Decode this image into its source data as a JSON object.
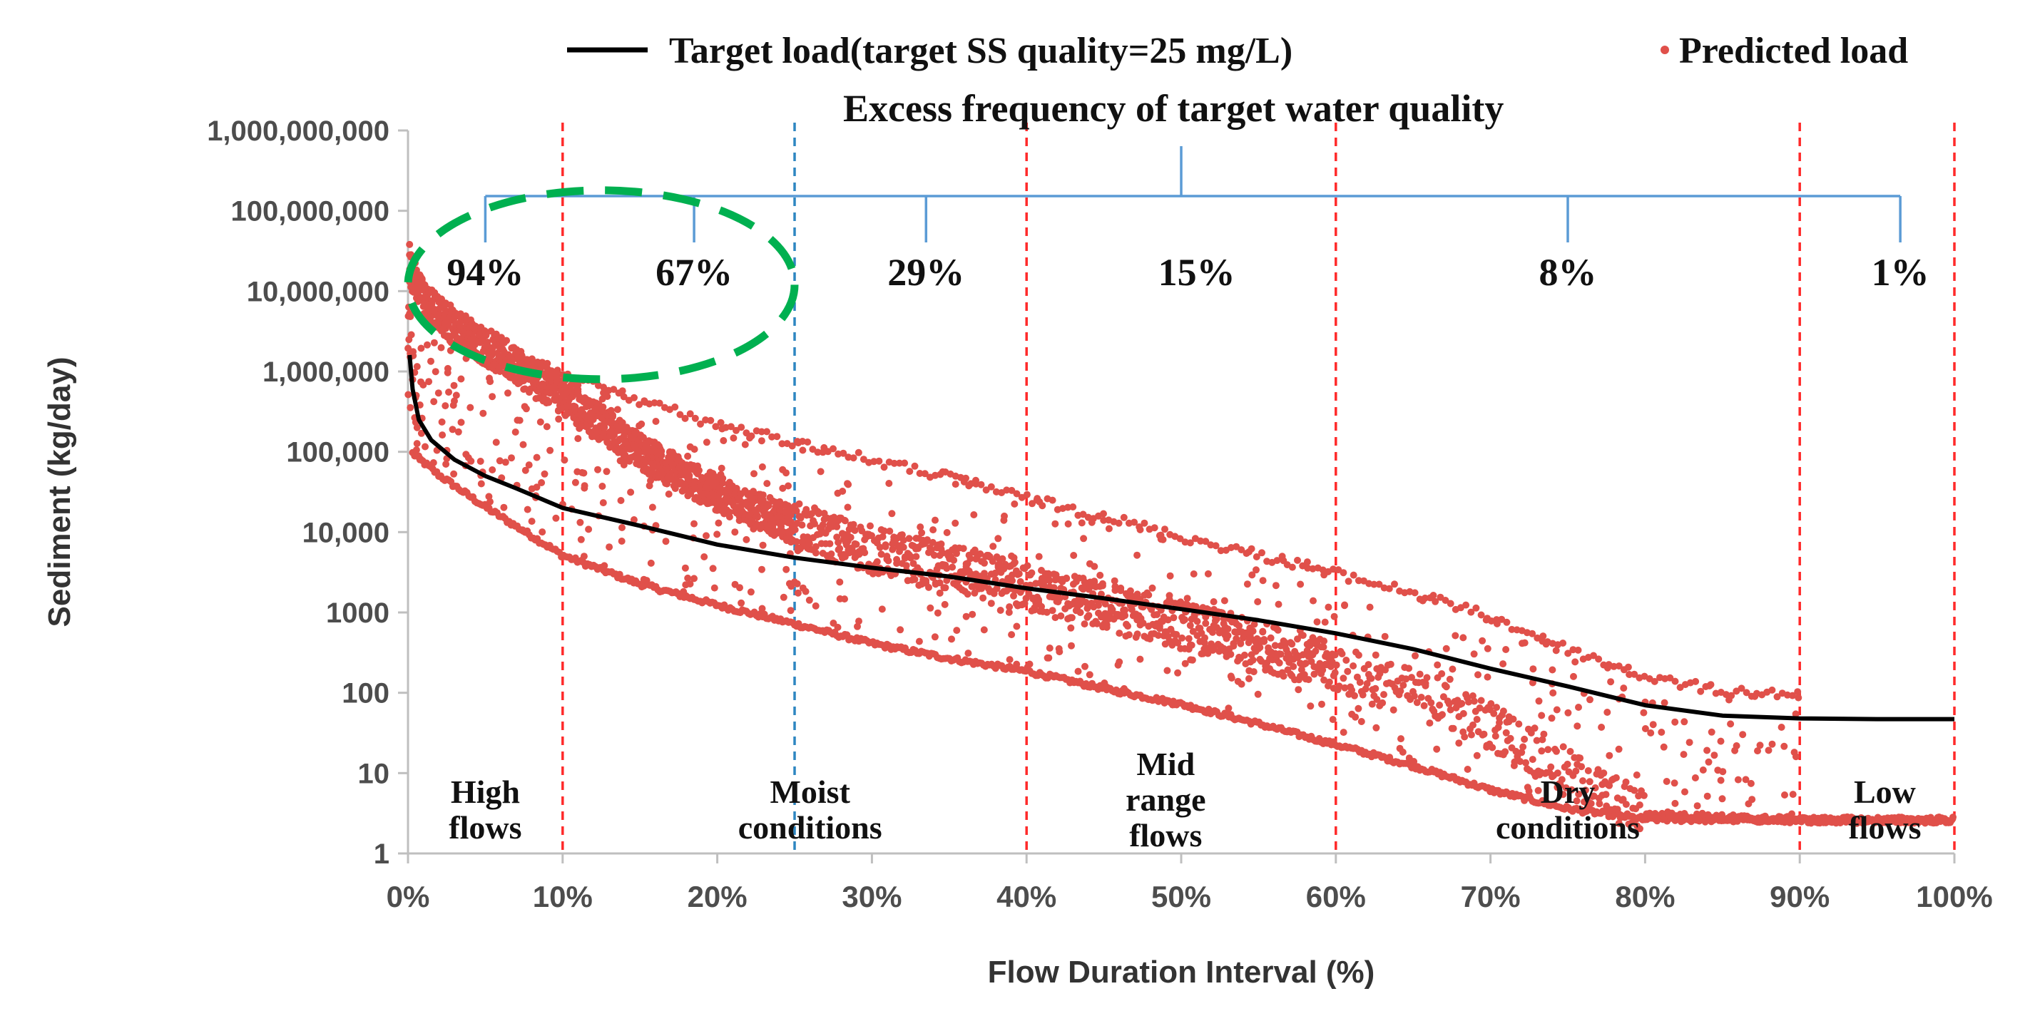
{
  "chart_data": {
    "type": "scatter",
    "title": "",
    "xlabel": "Flow Duration Interval (%)",
    "ylabel": "Sediment (kg/day)",
    "xlim": [
      0,
      100
    ],
    "ylim_log10": [
      0,
      9
    ],
    "y_ticks": [
      {
        "value": 1,
        "label": "1"
      },
      {
        "value": 10,
        "label": "10"
      },
      {
        "value": 100,
        "label": "100"
      },
      {
        "value": 1000,
        "label": "1000"
      },
      {
        "value": 10000,
        "label": "10,000"
      },
      {
        "value": 100000,
        "label": "100,000"
      },
      {
        "value": 1000000,
        "label": "1,000,000"
      },
      {
        "value": 10000000,
        "label": "10,000,000"
      },
      {
        "value": 100000000,
        "label": "100,000,000"
      },
      {
        "value": 1000000000,
        "label": "1,000,000,000"
      }
    ],
    "x_ticks": [
      {
        "value": 0,
        "label": "0%"
      },
      {
        "value": 10,
        "label": "10%"
      },
      {
        "value": 20,
        "label": "20%"
      },
      {
        "value": 30,
        "label": "30%"
      },
      {
        "value": 40,
        "label": "40%"
      },
      {
        "value": 50,
        "label": "50%"
      },
      {
        "value": 60,
        "label": "60%"
      },
      {
        "value": 70,
        "label": "70%"
      },
      {
        "value": 80,
        "label": "80%"
      },
      {
        "value": 90,
        "label": "90%"
      },
      {
        "value": 100,
        "label": "100%"
      }
    ],
    "legend": [
      {
        "name": "Target load(target  SS quality=25  mg/L)",
        "color": "#000000",
        "kind": "line"
      },
      {
        "name": "Predicted  load",
        "color": "#e0504a",
        "kind": "marker"
      }
    ],
    "series": [
      {
        "name": "Target load(target  SS quality=25  mg/L)",
        "type": "line",
        "color": "#000000",
        "points": [
          [
            0.1,
            1600000
          ],
          [
            0.3,
            600000
          ],
          [
            0.7,
            250000
          ],
          [
            1.5,
            140000
          ],
          [
            3,
            80000
          ],
          [
            5,
            50000
          ],
          [
            7,
            35000
          ],
          [
            10,
            20000
          ],
          [
            15,
            12000
          ],
          [
            20,
            7000
          ],
          [
            25,
            4800
          ],
          [
            30,
            3600
          ],
          [
            35,
            2800
          ],
          [
            40,
            2000
          ],
          [
            45,
            1500
          ],
          [
            50,
            1100
          ],
          [
            55,
            800
          ],
          [
            60,
            550
          ],
          [
            65,
            350
          ],
          [
            70,
            200
          ],
          [
            75,
            120
          ],
          [
            80,
            70
          ],
          [
            85,
            52
          ],
          [
            90,
            48
          ],
          [
            95,
            47
          ],
          [
            100,
            47
          ]
        ]
      },
      {
        "name": "Predicted  load",
        "type": "scatter",
        "color": "#e0504a",
        "bands": {
          "upper": [
            [
              0.1,
              40000000
            ],
            [
              1,
              15000000
            ],
            [
              3,
              6000000
            ],
            [
              5,
              3500000
            ],
            [
              10,
              1000000
            ],
            [
              15,
              500000
            ],
            [
              20,
              250000
            ],
            [
              25,
              150000
            ],
            [
              30,
              90000
            ],
            [
              35,
              55000
            ],
            [
              40,
              30000
            ],
            [
              45,
              18000
            ],
            [
              50,
              10000
            ],
            [
              55,
              6000
            ],
            [
              60,
              3500
            ],
            [
              65,
              2000
            ],
            [
              70,
              1000
            ],
            [
              75,
              400
            ],
            [
              80,
              180
            ],
            [
              85,
              120
            ],
            [
              90,
              110
            ]
          ],
          "lower": [
            [
              0.1,
              100000
            ],
            [
              2,
              50000
            ],
            [
              5,
              20000
            ],
            [
              10,
              5000
            ],
            [
              15,
              2200
            ],
            [
              20,
              1200
            ],
            [
              25,
              700
            ],
            [
              30,
              400
            ],
            [
              35,
              260
            ],
            [
              40,
              180
            ],
            [
              45,
              110
            ],
            [
              50,
              70
            ],
            [
              55,
              40
            ],
            [
              60,
              22
            ],
            [
              65,
              12
            ],
            [
              70,
              6
            ],
            [
              75,
              3.5
            ],
            [
              80,
              2.6
            ],
            [
              90,
              2.5
            ],
            [
              100,
              2.5
            ]
          ],
          "main": [
            [
              0.1,
              20000000
            ],
            [
              1,
              8000000
            ],
            [
              3,
              3500000
            ],
            [
              5,
              2000000
            ],
            [
              10,
              500000
            ],
            [
              15,
              100000
            ],
            [
              20,
              30000
            ],
            [
              25,
              12000
            ],
            [
              30,
              6000
            ],
            [
              35,
              3500
            ],
            [
              40,
              2000
            ],
            [
              45,
              1200
            ],
            [
              50,
              700
            ],
            [
              55,
              400
            ],
            [
              60,
              200
            ],
            [
              65,
              100
            ],
            [
              70,
              40
            ],
            [
              75,
              10
            ],
            [
              80,
              3
            ],
            [
              90,
              2.6
            ],
            [
              100,
              2.6
            ]
          ]
        }
      }
    ],
    "vertical_lines": [
      {
        "x": 10,
        "color": "#ff2a2a",
        "style": "dashed"
      },
      {
        "x": 25,
        "color": "#2e86c1",
        "style": "dashed"
      },
      {
        "x": 40,
        "color": "#ff2a2a",
        "style": "dashed"
      },
      {
        "x": 60,
        "color": "#ff2a2a",
        "style": "dashed"
      },
      {
        "x": 90,
        "color": "#ff2a2a",
        "style": "dashed"
      },
      {
        "x": 100,
        "color": "#ff2a2a",
        "style": "dashed"
      }
    ],
    "annotations": {
      "excess_title": "Excess frequency  of target water  quality",
      "bracket_color": "#5b9bd5",
      "bracket_center_x": 50,
      "bracket_ticks_x": [
        5,
        18.5,
        33.5,
        75,
        96.5
      ],
      "percentages": [
        {
          "label": "94%",
          "x": 5
        },
        {
          "label": "67%",
          "x": 18.5
        },
        {
          "label": "29%",
          "x": 33.5
        },
        {
          "label": "15%",
          "x": 51
        },
        {
          "label": "8%",
          "x": 75
        },
        {
          "label": "1%",
          "x": 96.5
        }
      ],
      "zones": [
        {
          "lines": [
            "High",
            "flows"
          ],
          "x": 5
        },
        {
          "lines": [
            "Moist",
            "conditions"
          ],
          "x": 26
        },
        {
          "lines": [
            "Mid",
            "range",
            "flows"
          ],
          "x": 49
        },
        {
          "lines": [
            "Dry",
            "conditions"
          ],
          "x": 75
        },
        {
          "lines": [
            "Low",
            "flows"
          ],
          "x": 95.5
        }
      ],
      "highlight_ellipse": {
        "x_range": [
          0,
          25
        ],
        "y_range": [
          800000,
          180000000
        ],
        "color": "#00b050"
      }
    }
  }
}
